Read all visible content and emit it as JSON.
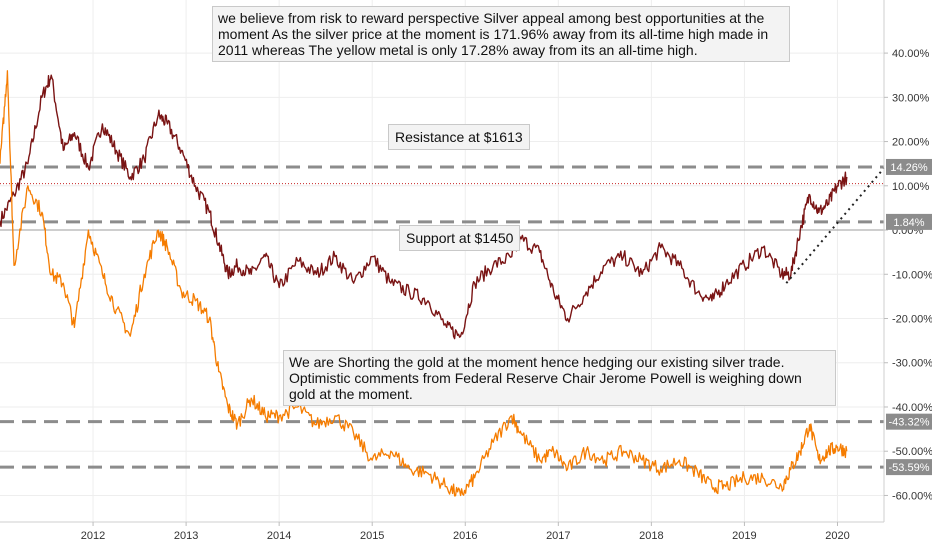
{
  "chart_data": {
    "type": "line",
    "title": "",
    "xlabel": "",
    "ylabel": "",
    "x_ticks": [
      "2012",
      "2013",
      "2014",
      "2015",
      "2016",
      "2017",
      "2018",
      "2019",
      "2020"
    ],
    "y_ticks": [
      "40.00%",
      "30.00%",
      "20.00%",
      "10.00%",
      "0.00%",
      "-10.00%",
      "-20.00%",
      "-30.00%",
      "-40.00%",
      "-50.00%",
      "-60.00%"
    ],
    "ylim": [
      -66,
      52
    ],
    "xlim": [
      2011.0,
      2020.5
    ],
    "grid": true,
    "series": [
      {
        "color": "#7a1414",
        "x": [
          2011.0,
          2011.15,
          2011.3,
          2011.45,
          2011.55,
          2011.68,
          2011.8,
          2011.95,
          2012.1,
          2012.25,
          2012.4,
          2012.55,
          2012.7,
          2012.8,
          2012.95,
          2013.1,
          2013.25,
          2013.35,
          2013.45,
          2013.55,
          2013.7,
          2013.85,
          2014.0,
          2014.2,
          2014.4,
          2014.6,
          2014.8,
          2015.0,
          2015.2,
          2015.4,
          2015.6,
          2015.8,
          2015.95,
          2016.1,
          2016.3,
          2016.5,
          2016.6,
          2016.8,
          2016.95,
          2017.1,
          2017.3,
          2017.5,
          2017.7,
          2017.9,
          2018.1,
          2018.3,
          2018.5,
          2018.65,
          2018.8,
          2019.0,
          2019.2,
          2019.4,
          2019.5,
          2019.6,
          2019.7,
          2019.8,
          2019.9,
          2020.0,
          2020.1
        ],
        "values": [
          2,
          8,
          15,
          30,
          35,
          18,
          22,
          14,
          24,
          18,
          12,
          16,
          26,
          24,
          18,
          10,
          4,
          -3,
          -10,
          -8,
          -10,
          -6,
          -13,
          -7,
          -10,
          -6,
          -12,
          -6,
          -12,
          -14,
          -16,
          -22,
          -24,
          -12,
          -8,
          -6,
          -2,
          -5,
          -14,
          -20,
          -14,
          -8,
          -6,
          -10,
          -4,
          -8,
          -14,
          -16,
          -12,
          -8,
          -4,
          -10,
          -10,
          0,
          8,
          4,
          6,
          10,
          12
        ]
      },
      {
        "color": "#f57c00",
        "x": [
          2011.0,
          2011.08,
          2011.15,
          2011.3,
          2011.45,
          2011.55,
          2011.68,
          2011.8,
          2011.95,
          2012.1,
          2012.25,
          2012.4,
          2012.55,
          2012.7,
          2012.8,
          2012.95,
          2013.1,
          2013.25,
          2013.35,
          2013.45,
          2013.55,
          2013.7,
          2013.85,
          2014.0,
          2014.2,
          2014.4,
          2014.6,
          2014.8,
          2015.0,
          2015.2,
          2015.4,
          2015.6,
          2015.8,
          2015.95,
          2016.1,
          2016.3,
          2016.5,
          2016.6,
          2016.8,
          2016.95,
          2017.1,
          2017.3,
          2017.5,
          2017.7,
          2017.9,
          2018.1,
          2018.3,
          2018.5,
          2018.65,
          2018.8,
          2019.0,
          2019.2,
          2019.4,
          2019.5,
          2019.6,
          2019.7,
          2019.8,
          2019.9,
          2020.0,
          2020.1
        ],
        "values": [
          15,
          36,
          -8,
          10,
          4,
          -10,
          -12,
          -22,
          0,
          -10,
          -18,
          -24,
          -10,
          0,
          -4,
          -14,
          -16,
          -20,
          -32,
          -40,
          -44,
          -38,
          -42,
          -42,
          -40,
          -44,
          -42,
          -46,
          -52,
          -50,
          -54,
          -55,
          -58,
          -60,
          -56,
          -48,
          -42,
          -46,
          -52,
          -50,
          -54,
          -50,
          -52,
          -50,
          -52,
          -54,
          -52,
          -55,
          -58,
          -58,
          -56,
          -56,
          -58,
          -54,
          -50,
          -44,
          -52,
          -50,
          -49,
          -50
        ]
      }
    ],
    "horizontal_levels": [
      {
        "value": 14.26,
        "label": "14.26%",
        "style": "dashed"
      },
      {
        "value": 1.84,
        "label": "1.84%",
        "style": "dashed"
      },
      {
        "value": -43.32,
        "label": "-43.32%",
        "style": "dashed"
      },
      {
        "value": -53.59,
        "label": "-53.59%",
        "style": "dashed"
      },
      {
        "value": 10.5,
        "label": "",
        "style": "dotted-red"
      },
      {
        "value": 0,
        "label": "",
        "style": "solid-thin"
      }
    ],
    "trendline": {
      "x": [
        2019.45,
        2020.5
      ],
      "y": [
        -12,
        14
      ]
    },
    "annotations": [
      {
        "text": "we believe from risk to reward perspective Silver appeal among best opportunities at the moment As the silver price at the moment is 171.96% away from its all-time high made in 2011 whereas The yellow metal is only 17.28% away from its an all-time high."
      },
      {
        "text": "Resistance at $1613"
      },
      {
        "text": "Support at $1450"
      },
      {
        "text": "We are Shorting the gold at the moment hence hedging our existing silver trade. Optimistic comments from Federal Reserve Chair Jerome Powell is weighing down gold at the moment."
      }
    ]
  }
}
